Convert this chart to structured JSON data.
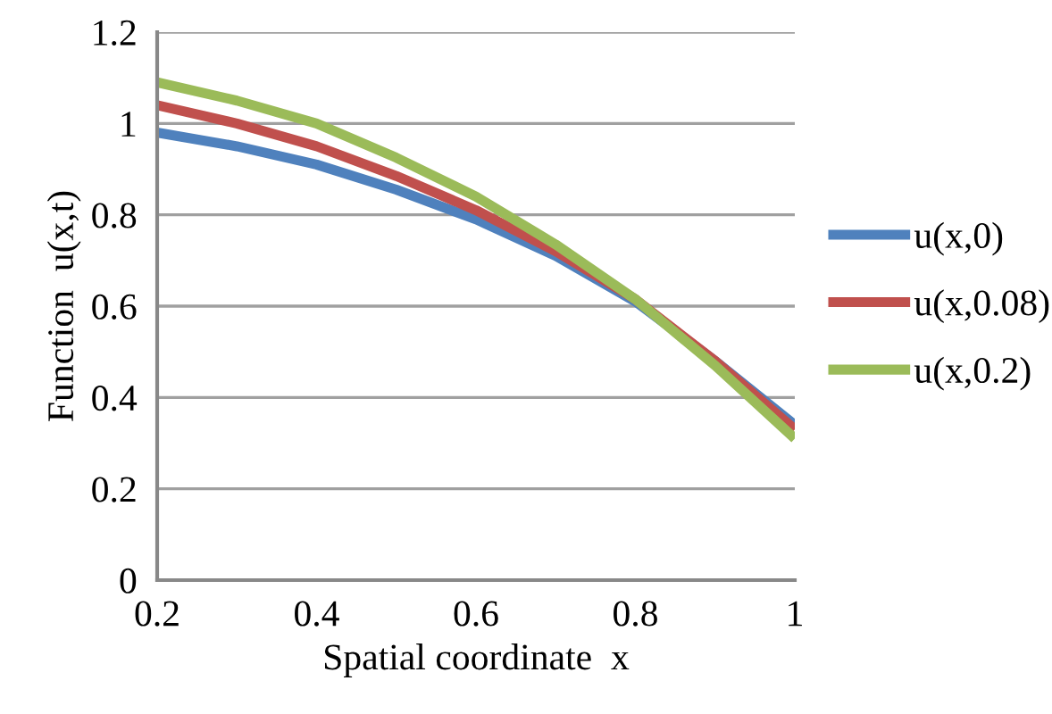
{
  "chart_data": {
    "type": "line",
    "xlabel": "Spatial coordinate  x",
    "ylabel": "Function  u(x,t)",
    "x": [
      0.2,
      0.3,
      0.4,
      0.5,
      0.6,
      0.7,
      0.8,
      0.9,
      1.0
    ],
    "series": [
      {
        "name": "u(x,0)",
        "color": "#4f81bd",
        "values": [
          0.98,
          0.95,
          0.91,
          0.855,
          0.79,
          0.71,
          0.61,
          0.48,
          0.34
        ]
      },
      {
        "name": "u(x,0.08)",
        "color": "#c0504d",
        "values": [
          1.04,
          1.0,
          0.95,
          0.885,
          0.81,
          0.72,
          0.615,
          0.48,
          0.33
        ]
      },
      {
        "name": "u(x,0.2)",
        "color": "#9bbb59",
        "values": [
          1.09,
          1.05,
          1.0,
          0.925,
          0.84,
          0.735,
          0.615,
          0.47,
          0.31
        ]
      }
    ],
    "xlim": [
      0.2,
      1
    ],
    "xticks": [
      0.2,
      0.4,
      0.6,
      0.8,
      1
    ],
    "ylim": [
      0,
      1.2
    ],
    "yticks": [
      0,
      0.2,
      0.4,
      0.6,
      0.8,
      1,
      1.2
    ],
    "grid": "y",
    "legend": "right",
    "marker": "none",
    "line_style": "solid"
  }
}
